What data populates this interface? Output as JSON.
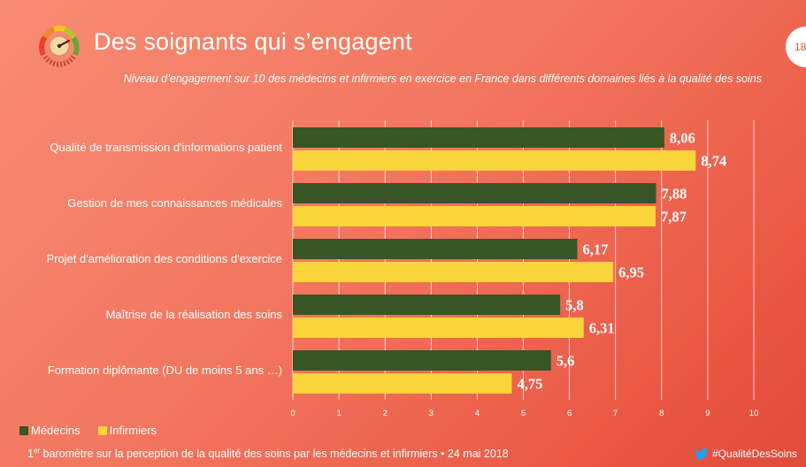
{
  "header": {
    "title": "Des soignants qui s’engagent",
    "subtitle": "Niveau d’engagement sur 10 des médecins et infirmiers en exercice en France dans différents domaines liés à la qualité des soins",
    "page_number": "18"
  },
  "footer": {
    "note_prefix": "1",
    "note_sup": "er",
    "note_text": " baromètre sur la perception de la qualité des soins par les médecins et infirmiers • 24 mai 2018",
    "hashtag": "#QualitéDesSoins"
  },
  "colors": {
    "medecins": "#375623",
    "infirmiers": "#f9d43a",
    "gridline": "#ffffff",
    "background": "#f3765f"
  },
  "icons": [
    "gauge-icon",
    "twitter-bird-icon"
  ],
  "chart_data": {
    "type": "bar",
    "orientation": "horizontal",
    "title": "Des soignants qui s’engagent",
    "subtitle": "Niveau d’engagement sur 10 des médecins et infirmiers en exercice en France dans différents domaines liés à la qualité des soins",
    "categories": [
      "Qualité de transmission d'informations patient",
      "Gestion de mes connaissances médicales",
      "Projet d'amélioration des conditions d'exercice",
      "Maîtrise de la réalisation des soins",
      "Formation diplômante (DU de moins 5 ans …)"
    ],
    "series": [
      {
        "name": "Médecins",
        "values": [
          8.06,
          7.88,
          6.17,
          5.8,
          5.6
        ],
        "labels": [
          "8,06",
          "7,88",
          "6,17",
          "5,8",
          "5,6"
        ]
      },
      {
        "name": "Infirmiers",
        "values": [
          8.74,
          7.87,
          6.95,
          6.31,
          4.75
        ],
        "labels": [
          "8,74",
          "7,87",
          "6,95",
          "6,31",
          "4,75"
        ]
      }
    ],
    "xlim": [
      0,
      10
    ],
    "ticks": [
      "0",
      "1",
      "2",
      "3",
      "4",
      "5",
      "6",
      "7",
      "8",
      "9",
      "10"
    ],
    "grid": true,
    "legend": "bottom-left"
  }
}
